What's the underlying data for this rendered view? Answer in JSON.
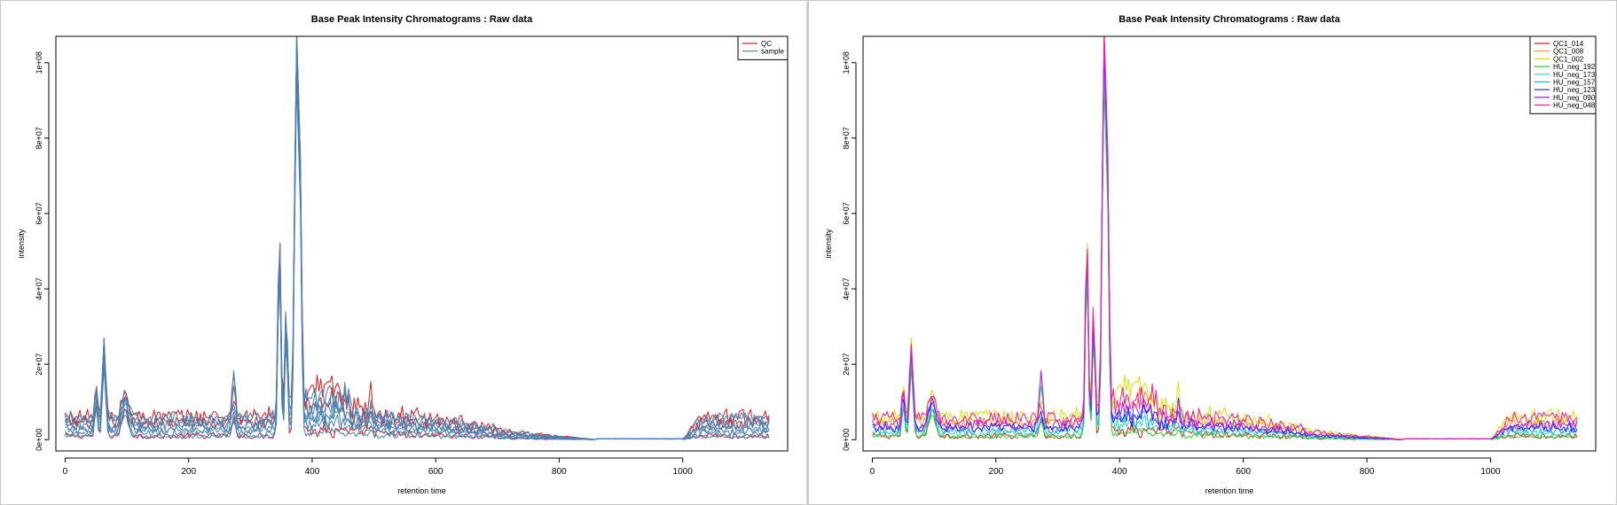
{
  "chart_data": [
    {
      "type": "line",
      "title": "Base Peak Intensity Chromatograms : Raw data",
      "xlabel": "retention time",
      "ylabel": "intensity",
      "xlim": [
        -15,
        1170
      ],
      "ylim": [
        -3000000,
        107000000
      ],
      "x_ticks": [
        0,
        200,
        400,
        600,
        800,
        1000
      ],
      "x_tick_labels": [
        "0",
        "200",
        "400",
        "600",
        "800",
        "1000"
      ],
      "y_ticks": [
        0,
        20000000,
        40000000,
        60000000,
        80000000,
        100000000
      ],
      "y_tick_labels": [
        "0e+00",
        "2e+07",
        "4e+07",
        "6e+07",
        "8e+07",
        "1e+08"
      ],
      "legend_position": "top-right",
      "legend": [
        {
          "label": "QC",
          "color": "#e31a1c"
        },
        {
          "label": "sample",
          "color": "#4682b4"
        }
      ],
      "series": [
        {
          "color": "#e31a1c",
          "baseline": 1000000,
          "amplitude": 1.0,
          "peak_scale": 0.98
        },
        {
          "color": "#e31a1c",
          "baseline": 4500000,
          "amplitude": 1.9,
          "peak_scale": 1.0
        },
        {
          "color": "#e31a1c",
          "baseline": 6200000,
          "amplitude": 2.4,
          "peak_scale": 0.97
        },
        {
          "color": "#4682b4",
          "baseline": 800000,
          "amplitude": 0.7,
          "peak_scale": 0.9
        },
        {
          "color": "#4682b4",
          "baseline": 1800000,
          "amplitude": 1.1,
          "peak_scale": 0.95
        },
        {
          "color": "#4682b4",
          "baseline": 2500000,
          "amplitude": 1.3,
          "peak_scale": 1.0
        },
        {
          "color": "#4682b4",
          "baseline": 3200000,
          "amplitude": 1.5,
          "peak_scale": 0.93
        },
        {
          "color": "#4682b4",
          "baseline": 3900000,
          "amplitude": 1.6,
          "peak_scale": 0.97
        },
        {
          "color": "#4682b4",
          "baseline": 5000000,
          "amplitude": 2.0,
          "peak_scale": 0.99
        },
        {
          "color": "#4682b4",
          "baseline": 5600000,
          "amplitude": 2.2,
          "peak_scale": 0.96
        }
      ]
    },
    {
      "type": "line",
      "title": "Base Peak Intensity Chromatograms : Raw data",
      "xlabel": "retention time",
      "ylabel": "intensity",
      "xlim": [
        -15,
        1170
      ],
      "ylim": [
        -3000000,
        107000000
      ],
      "x_ticks": [
        0,
        200,
        400,
        600,
        800,
        1000
      ],
      "x_tick_labels": [
        "0",
        "200",
        "400",
        "600",
        "800",
        "1000"
      ],
      "y_ticks": [
        0,
        20000000,
        40000000,
        60000000,
        80000000,
        100000000
      ],
      "y_tick_labels": [
        "0e+00",
        "2e+07",
        "4e+07",
        "6e+07",
        "8e+07",
        "1e+08"
      ],
      "legend_position": "top-right",
      "legend": [
        {
          "label": "QC1_014",
          "color": "#e31a1c"
        },
        {
          "label": "QC1_008",
          "color": "#ff8c1a"
        },
        {
          "label": "QC1_002",
          "color": "#d4e600"
        },
        {
          "label": "HU_neg_192",
          "color": "#33cc33"
        },
        {
          "label": "HU_neg_173",
          "color": "#19e6b3"
        },
        {
          "label": "HU_neg_157",
          "color": "#1aaeea"
        },
        {
          "label": "HU_neg_123",
          "color": "#1a1aff"
        },
        {
          "label": "HU_neg_090",
          "color": "#a31aff"
        },
        {
          "label": "HU_neg_048",
          "color": "#ff1aa3"
        }
      ],
      "series": [
        {
          "name": "QC1_014",
          "color": "#e31a1c",
          "baseline": 1000000,
          "amplitude": 1.0,
          "peak_scale": 0.98
        },
        {
          "name": "QC1_008",
          "color": "#ff8c1a",
          "baseline": 4500000,
          "amplitude": 1.9,
          "peak_scale": 1.0
        },
        {
          "name": "QC1_002",
          "color": "#d4e600",
          "baseline": 6200000,
          "amplitude": 2.4,
          "peak_scale": 0.97
        },
        {
          "name": "HU_neg_192",
          "color": "#33cc33",
          "baseline": 800000,
          "amplitude": 0.7,
          "peak_scale": 0.9
        },
        {
          "name": "HU_neg_173",
          "color": "#19e6b3",
          "baseline": 1800000,
          "amplitude": 1.1,
          "peak_scale": 0.95
        },
        {
          "name": "HU_neg_157",
          "color": "#1aaeea",
          "baseline": 2500000,
          "amplitude": 1.3,
          "peak_scale": 0.93
        },
        {
          "name": "HU_neg_123",
          "color": "#1a1aff",
          "baseline": 3200000,
          "amplitude": 1.5,
          "peak_scale": 0.99
        },
        {
          "name": "HU_neg_090",
          "color": "#a31aff",
          "baseline": 3900000,
          "amplitude": 1.6,
          "peak_scale": 0.97
        },
        {
          "name": "HU_neg_048",
          "color": "#ff1aa3",
          "baseline": 5600000,
          "amplitude": 2.2,
          "peak_scale": 1.0
        }
      ]
    }
  ]
}
